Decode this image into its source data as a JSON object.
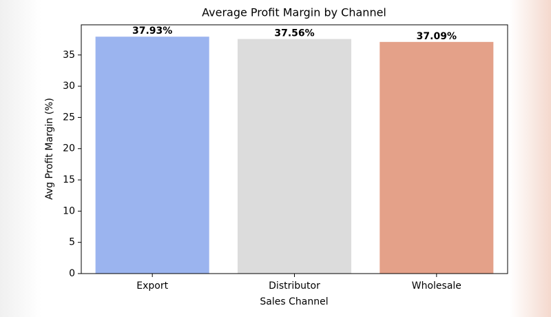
{
  "chart_data": {
    "type": "bar",
    "title": "Average Profit Margin by Channel",
    "x_label": "Sales Channel",
    "y_label": "Avg Profit Margin (%)",
    "categories": [
      "Export",
      "Distributor",
      "Wholesale"
    ],
    "values": [
      37.93,
      37.56,
      37.09
    ],
    "value_labels": [
      "37.93%",
      "37.56%",
      "37.09%"
    ],
    "colors": [
      "#9bb4ef",
      "#dcdcdc",
      "#e4a189"
    ],
    "ylim": [
      0,
      39.83
    ],
    "yticks": [
      0,
      5,
      10,
      15,
      20,
      25,
      30,
      35
    ],
    "grid": false
  }
}
